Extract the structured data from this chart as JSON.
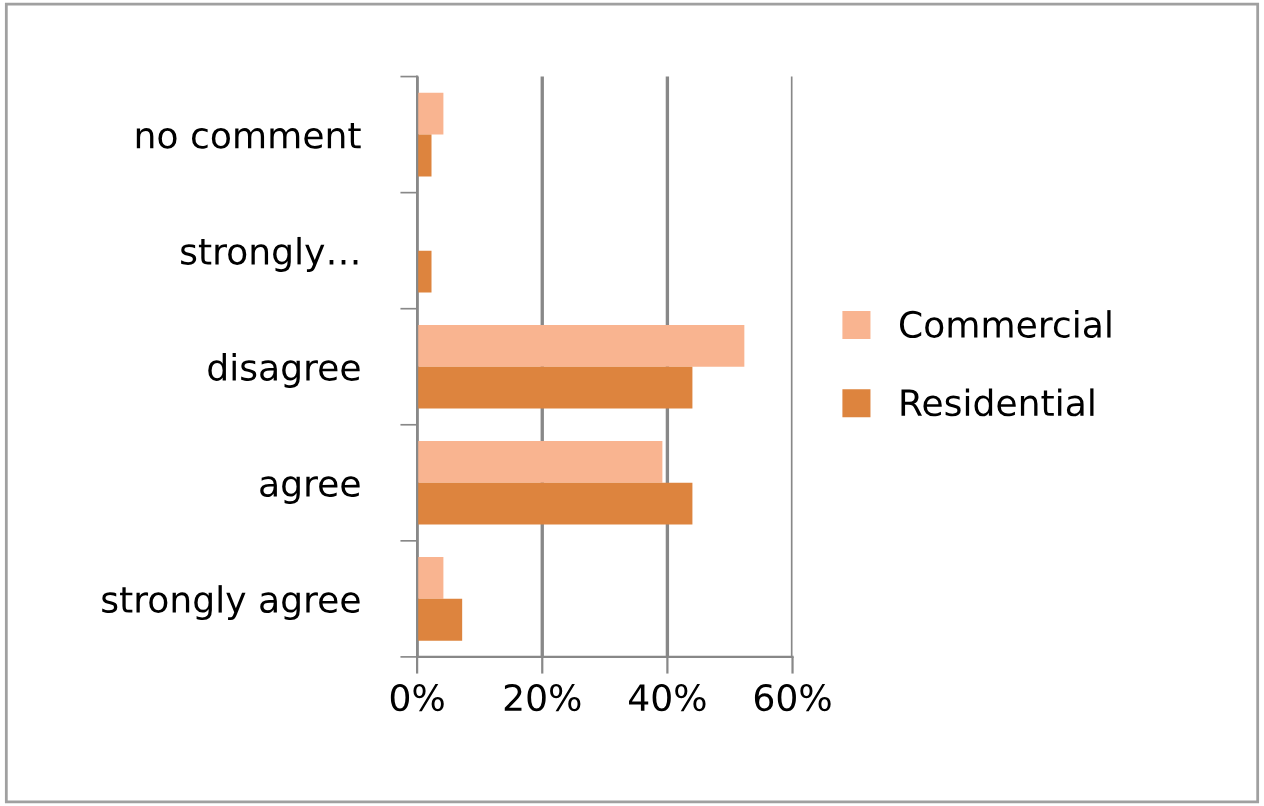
{
  "chart_data": {
    "type": "bar",
    "orientation": "horizontal",
    "categories": [
      "no comment",
      "strongly…",
      "disagree",
      "agree",
      "strongly agree"
    ],
    "series": [
      {
        "name": "Commercial",
        "color": "#f9b490",
        "values": [
          4.2,
          0,
          52.3,
          39.2,
          4.2
        ]
      },
      {
        "name": "Residential",
        "color": "#dd843e",
        "values": [
          2.3,
          2.3,
          44,
          44,
          7.2
        ]
      }
    ],
    "xlim": [
      0,
      60
    ],
    "xticks": [
      {
        "value": 0,
        "label": "0%"
      },
      {
        "value": 20,
        "label": "20%"
      },
      {
        "value": 40,
        "label": "40%"
      },
      {
        "value": 60,
        "label": "60%"
      }
    ],
    "grid": "x",
    "legend": "right"
  }
}
